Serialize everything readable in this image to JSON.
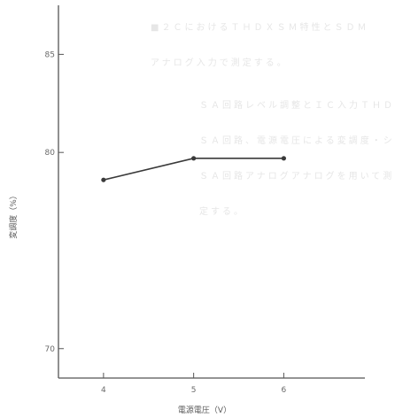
{
  "background_text": [
    "■２ＣにおけるＴＨＤＸＳＭ特性とＳＤＭ",
    "アナログ入力で測定する。",
    "ＳＡ回路レベル調整とＩＣ入力ＴＨＤ",
    "ＳＡ回路、電源電圧による変調度・シ",
    "ＳＡ回路アナログアナログを用いて測",
    "定する。"
  ],
  "chart_data": {
    "type": "line",
    "title": "",
    "xlabel": "電源電圧（V）",
    "ylabel": "変調度（%）",
    "x": [
      4,
      5,
      6
    ],
    "x_tick_labels": [
      "4",
      "5",
      "6"
    ],
    "xlim": [
      3.5,
      6.9
    ],
    "ylim": [
      68.5,
      87.5
    ],
    "y_ticks": [
      70,
      80,
      85
    ],
    "y_tick_labels": [
      "70",
      "80",
      "85"
    ],
    "series": [
      {
        "name": "",
        "values": [
          78.6,
          79.7,
          79.7
        ]
      }
    ],
    "grid": false,
    "colors": {
      "line": "#3a3a3a",
      "axis": "#555555"
    }
  }
}
